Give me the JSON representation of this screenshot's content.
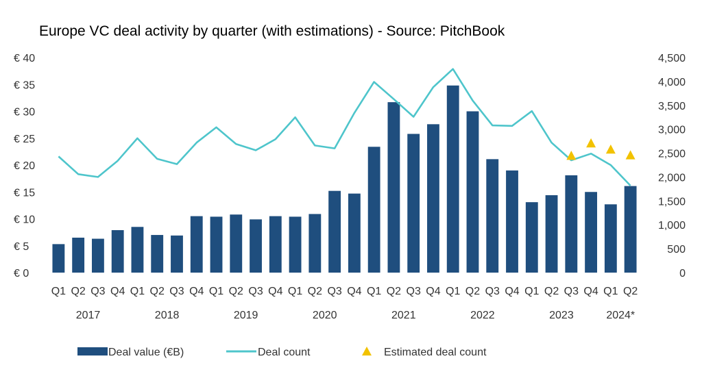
{
  "chart_data": {
    "type": "bar",
    "title": "Europe VC deal activity by quarter (with estimations) - Source: PitchBook",
    "categories": [
      "Q1",
      "Q2",
      "Q3",
      "Q4",
      "Q1",
      "Q2",
      "Q3",
      "Q4",
      "Q1",
      "Q2",
      "Q3",
      "Q4",
      "Q1",
      "Q2",
      "Q3",
      "Q4",
      "Q1",
      "Q2",
      "Q3",
      "Q4",
      "Q1",
      "Q2",
      "Q3",
      "Q4",
      "Q1",
      "Q2",
      "Q3",
      "Q4",
      "Q1",
      "Q2"
    ],
    "years": [
      "2017",
      "2018",
      "2019",
      "2020",
      "2021",
      "2022",
      "2023",
      "2024*"
    ],
    "left_axis": {
      "ylim": [
        0,
        40
      ],
      "ticks": [
        "€ 0",
        "€ 5",
        "€ 10",
        "€ 15",
        "€ 20",
        "€ 25",
        "€ 30",
        "€ 35",
        "€ 40"
      ]
    },
    "right_axis": {
      "ylim": [
        0,
        4500
      ],
      "ticks": [
        "0",
        "500",
        "1,000",
        "1,500",
        "2,000",
        "2,500",
        "3,000",
        "3,500",
        "4,000",
        "4,500"
      ]
    },
    "series": [
      {
        "name": "Deal value (€B)",
        "type": "bar",
        "axis": "left",
        "color": "#1f4e7e",
        "values": [
          5.3,
          6.5,
          6.3,
          7.9,
          8.5,
          7.0,
          6.9,
          10.5,
          10.4,
          10.8,
          9.9,
          10.5,
          10.4,
          10.9,
          15.2,
          14.7,
          23.4,
          31.7,
          25.8,
          27.6,
          34.8,
          30.0,
          21.1,
          19.0,
          13.1,
          14.4,
          18.1,
          15.0,
          12.7,
          16.1
        ]
      },
      {
        "name": "Deal count",
        "type": "line",
        "axis": "right",
        "color": "#4ec5cb",
        "values": [
          2430,
          2060,
          2000,
          2340,
          2810,
          2380,
          2270,
          2720,
          3040,
          2690,
          2560,
          2790,
          3250,
          2660,
          2600,
          3340,
          3990,
          3630,
          3260,
          3880,
          4260,
          3600,
          3080,
          3070,
          3380,
          2720,
          2350,
          2490,
          2250,
          1820
        ]
      },
      {
        "name": "Estimated deal count",
        "type": "scatter",
        "axis": "right",
        "color": "#f2c200",
        "start_index": 26,
        "values": [
          2450,
          2710,
          2580,
          2460
        ]
      }
    ],
    "legend_position": "bottom",
    "grid": false
  }
}
